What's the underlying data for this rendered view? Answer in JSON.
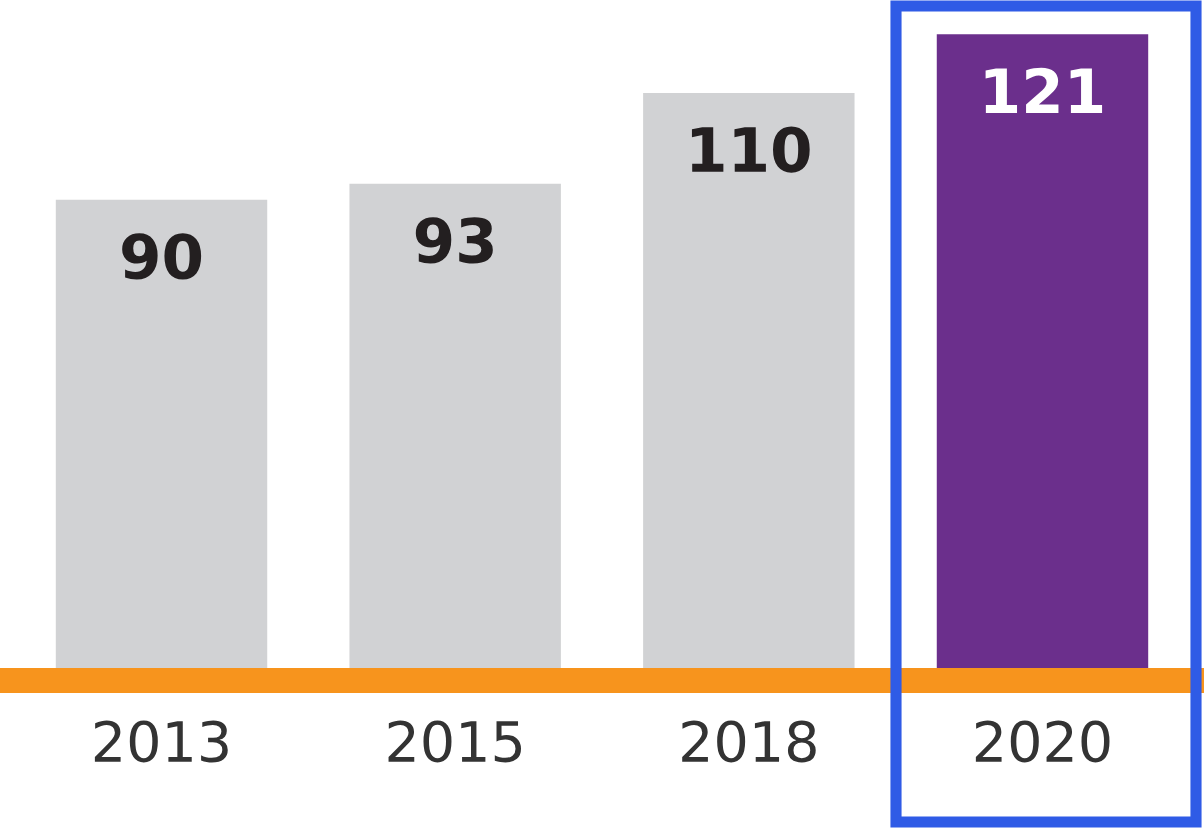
{
  "chart_data": {
    "type": "bar",
    "categories": [
      "2013",
      "2015",
      "2018",
      "2020"
    ],
    "values": [
      90,
      93,
      110,
      121
    ],
    "colors": [
      "#d1d2d4",
      "#d1d2d4",
      "#d1d2d4",
      "#6b2f8c"
    ],
    "data_labels": true,
    "grid": false,
    "legend": false,
    "tick_labels": "x"
  }
}
